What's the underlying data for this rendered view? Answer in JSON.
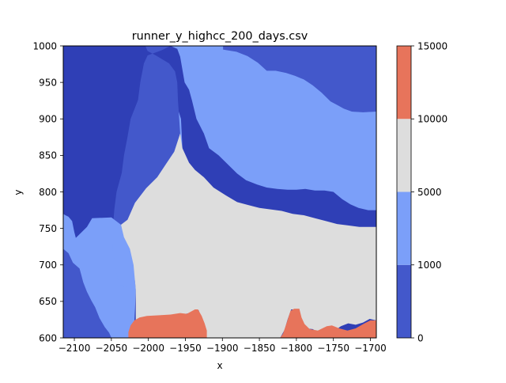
{
  "chart_data": {
    "type": "contourf",
    "title": "runner_y_highcc_200_days.csv",
    "xlabel": "x",
    "ylabel": "y",
    "xlim": [
      -2115,
      -1692
    ],
    "ylim": [
      600,
      1000
    ],
    "xticks": [
      -2100,
      -2050,
      -2000,
      -1950,
      -1900,
      -1850,
      -1800,
      -1750,
      -1700
    ],
    "xtick_labels": [
      "−2100",
      "−2050",
      "−2000",
      "−1950",
      "−1900",
      "−1850",
      "−1800",
      "−1750",
      "−1700"
    ],
    "yticks": [
      600,
      650,
      700,
      750,
      800,
      850,
      900,
      950,
      1000
    ],
    "ytick_labels": [
      "600",
      "650",
      "700",
      "750",
      "800",
      "850",
      "900",
      "950",
      "1000"
    ],
    "colorbar": {
      "levels": [
        0,
        1000,
        5000,
        10000,
        15000
      ],
      "level_labels": [
        "0",
        "1000",
        "5000",
        "10000",
        "15000"
      ],
      "colors": [
        "#4358cb",
        "#7b9ff9",
        "#dddddd",
        "#e7745b"
      ]
    },
    "regions": [
      {
        "level_index": 0,
        "points": [
          [
            -2115,
            600
          ],
          [
            -2115,
            722
          ],
          [
            -2108,
            716
          ],
          [
            -2102,
            703
          ],
          [
            -2093,
            695
          ],
          [
            -2088,
            676
          ],
          [
            -2083,
            663
          ],
          [
            -2077,
            651
          ],
          [
            -2072,
            642
          ],
          [
            -2066,
            627
          ],
          [
            -2059,
            615
          ],
          [
            -2053,
            607
          ],
          [
            -2050,
            600
          ]
        ]
      },
      {
        "level_index": 0,
        "points": [
          [
            -2004,
            1000
          ],
          [
            -2001,
            993
          ],
          [
            -1990,
            987
          ],
          [
            -1972,
            976
          ],
          [
            -1964,
            965
          ],
          [
            -1961,
            950
          ],
          [
            -1960,
            925
          ],
          [
            -1959,
            910
          ],
          [
            -1956,
            900
          ],
          [
            -1954,
            860
          ],
          [
            -1956,
            850
          ],
          [
            -1960,
            825
          ],
          [
            -1971,
            800
          ],
          [
            -1978,
            776
          ],
          [
            -1985,
            751
          ],
          [
            -1992,
            730
          ],
          [
            -2001,
            713
          ],
          [
            -2007,
            698
          ],
          [
            -2015,
            683
          ],
          [
            -2022,
            674
          ],
          [
            -2031,
            670
          ],
          [
            -2039,
            673
          ],
          [
            -2043,
            687
          ],
          [
            -2047,
            712
          ],
          [
            -2049,
            730
          ],
          [
            -2048,
            750
          ],
          [
            -2046,
            776
          ],
          [
            -2043,
            800
          ],
          [
            -2036,
            826
          ],
          [
            -2033,
            850
          ],
          [
            -2028,
            876
          ],
          [
            -2024,
            900
          ],
          [
            -2014,
            926
          ],
          [
            -2011,
            950
          ],
          [
            -2006,
            976
          ],
          [
            -2001,
            987
          ],
          [
            -1982,
            994
          ],
          [
            -1970,
            1000
          ]
        ]
      },
      {
        "level_index": 0,
        "points": [
          [
            -1899,
            1000
          ],
          [
            -1899,
            995
          ],
          [
            -1881,
            992
          ],
          [
            -1866,
            986
          ],
          [
            -1852,
            977
          ],
          [
            -1840,
            966
          ],
          [
            -1828,
            966
          ],
          [
            -1814,
            963
          ],
          [
            -1802,
            959
          ],
          [
            -1790,
            954
          ],
          [
            -1778,
            946
          ],
          [
            -1766,
            936
          ],
          [
            -1754,
            924
          ],
          [
            -1743,
            918
          ],
          [
            -1736,
            914
          ],
          [
            -1725,
            910
          ],
          [
            -1710,
            909
          ],
          [
            -1692,
            910
          ],
          [
            -1692,
            1000
          ]
        ]
      },
      {
        "level_index": 1,
        "points": [
          [
            -2115,
            1000
          ],
          [
            -2115,
            722
          ],
          [
            -2108,
            716
          ],
          [
            -2102,
            703
          ],
          [
            -2093,
            695
          ],
          [
            -2088,
            676
          ],
          [
            -2083,
            663
          ],
          [
            -2077,
            651
          ],
          [
            -2072,
            642
          ],
          [
            -2066,
            627
          ],
          [
            -2059,
            615
          ],
          [
            -2053,
            607
          ],
          [
            -2050,
            600
          ],
          [
            -2020,
            600
          ],
          [
            -2018,
            640
          ],
          [
            -2017,
            666
          ],
          [
            -2020,
            700
          ],
          [
            -2025,
            722
          ],
          [
            -2033,
            738
          ],
          [
            -2037,
            755
          ],
          [
            -2050,
            765
          ],
          [
            -2076,
            764
          ],
          [
            -2083,
            752
          ],
          [
            -2092,
            743
          ],
          [
            -2098,
            737
          ],
          [
            -2100,
            745
          ],
          [
            -2103,
            760
          ],
          [
            -2108,
            766
          ],
          [
            -2112,
            768
          ],
          [
            -2115,
            770
          ],
          [
            -2115,
            1000
          ]
        ]
      },
      {
        "level_index": 1,
        "points": [
          [
            -1960,
            925
          ],
          [
            -1959,
            910
          ],
          [
            -1956,
            900
          ],
          [
            -1954,
            860
          ],
          [
            -1956,
            850
          ],
          [
            -1960,
            825
          ],
          [
            -1971,
            800
          ],
          [
            -1978,
            776
          ],
          [
            -1985,
            751
          ],
          [
            -1992,
            730
          ],
          [
            -2001,
            713
          ],
          [
            -2007,
            698
          ],
          [
            -2015,
            683
          ],
          [
            -2022,
            674
          ],
          [
            -2031,
            670
          ],
          [
            -2039,
            673
          ],
          [
            -2043,
            687
          ],
          [
            -2047,
            712
          ],
          [
            -2049,
            730
          ],
          [
            -2037,
            748
          ],
          [
            -2028,
            762
          ],
          [
            -2018,
            785
          ],
          [
            -2003,
            805
          ],
          [
            -1988,
            820
          ],
          [
            -1975,
            840
          ],
          [
            -1965,
            855
          ],
          [
            -1957,
            880
          ],
          [
            -1960,
            925
          ]
        ]
      },
      {
        "level_index": 1,
        "points": [
          [
            -1970,
            1000
          ],
          [
            -1961,
            996
          ],
          [
            -1957,
            985
          ],
          [
            -1951,
            950
          ],
          [
            -1945,
            940
          ],
          [
            -1941,
            925
          ],
          [
            -1935,
            900
          ],
          [
            -1925,
            880
          ],
          [
            -1918,
            860
          ],
          [
            -1905,
            850
          ],
          [
            -1893,
            838
          ],
          [
            -1880,
            825
          ],
          [
            -1868,
            816
          ],
          [
            -1853,
            810
          ],
          [
            -1840,
            806
          ],
          [
            -1826,
            804
          ],
          [
            -1812,
            803
          ],
          [
            -1800,
            803
          ],
          [
            -1788,
            804
          ],
          [
            -1775,
            802
          ],
          [
            -1762,
            802
          ],
          [
            -1750,
            800
          ],
          [
            -1738,
            790
          ],
          [
            -1727,
            783
          ],
          [
            -1716,
            778
          ],
          [
            -1703,
            775
          ],
          [
            -1692,
            775
          ],
          [
            -1692,
            910
          ],
          [
            -1710,
            909
          ],
          [
            -1725,
            910
          ],
          [
            -1736,
            914
          ],
          [
            -1743,
            918
          ],
          [
            -1754,
            924
          ],
          [
            -1766,
            936
          ],
          [
            -1778,
            946
          ],
          [
            -1790,
            954
          ],
          [
            -1802,
            959
          ],
          [
            -1814,
            963
          ],
          [
            -1828,
            966
          ],
          [
            -1840,
            966
          ],
          [
            -1852,
            977
          ],
          [
            -1866,
            986
          ],
          [
            -1881,
            992
          ],
          [
            -1899,
            995
          ],
          [
            -1899,
            1000
          ]
        ]
      },
      {
        "level_index": 2,
        "points": [
          [
            -2017,
            666
          ],
          [
            -2020,
            700
          ],
          [
            -2025,
            722
          ],
          [
            -2033,
            738
          ],
          [
            -2037,
            755
          ],
          [
            -2028,
            762
          ],
          [
            -2018,
            785
          ],
          [
            -2003,
            805
          ],
          [
            -1988,
            820
          ],
          [
            -1975,
            840
          ],
          [
            -1965,
            855
          ],
          [
            -1957,
            880
          ],
          [
            -1954,
            860
          ],
          [
            -1945,
            840
          ],
          [
            -1937,
            830
          ],
          [
            -1925,
            820
          ],
          [
            -1912,
            806
          ],
          [
            -1895,
            795
          ],
          [
            -1880,
            786
          ],
          [
            -1865,
            782
          ],
          [
            -1850,
            778
          ],
          [
            -1835,
            776
          ],
          [
            -1820,
            774
          ],
          [
            -1805,
            770
          ],
          [
            -1790,
            768
          ],
          [
            -1775,
            764
          ],
          [
            -1760,
            760
          ],
          [
            -1745,
            756
          ],
          [
            -1730,
            754
          ],
          [
            -1715,
            752
          ],
          [
            -1703,
            752
          ],
          [
            -1692,
            752
          ],
          [
            -1692,
            624
          ],
          [
            -1701,
            626
          ],
          [
            -1710,
            621
          ],
          [
            -1720,
            618
          ],
          [
            -1730,
            620
          ],
          [
            -1740,
            616
          ],
          [
            -1748,
            610
          ],
          [
            -1755,
            605
          ],
          [
            -1768,
            606
          ],
          [
            -1778,
            612
          ],
          [
            -1789,
            613
          ],
          [
            -1794,
            622
          ],
          [
            -1800,
            639
          ],
          [
            -1807,
            639
          ],
          [
            -1812,
            625
          ],
          [
            -1816,
            611
          ],
          [
            -1822,
            600
          ],
          [
            -1922,
            600
          ],
          [
            -1925,
            612
          ],
          [
            -1932,
            638
          ],
          [
            -1944,
            634
          ],
          [
            -1960,
            631
          ],
          [
            -1980,
            628
          ],
          [
            -2000,
            625
          ],
          [
            -2017,
            616
          ],
          [
            -2017,
            666
          ]
        ]
      },
      {
        "level_index": 3,
        "points": [
          [
            -2027,
            600
          ],
          [
            -2027,
            608
          ],
          [
            -2024,
            617
          ],
          [
            -2019,
            624
          ],
          [
            -2012,
            628
          ],
          [
            -2002,
            630
          ],
          [
            -1985,
            631
          ],
          [
            -1970,
            632
          ],
          [
            -1957,
            634
          ],
          [
            -1948,
            633
          ],
          [
            -1937,
            639
          ],
          [
            -1933,
            639
          ],
          [
            -1928,
            630
          ],
          [
            -1924,
            620
          ],
          [
            -1921,
            610
          ],
          [
            -1921,
            600
          ]
        ]
      },
      {
        "level_index": 3,
        "points": [
          [
            -1822,
            600
          ],
          [
            -1818,
            606
          ],
          [
            -1814,
            618
          ],
          [
            -1808,
            637
          ],
          [
            -1803,
            640
          ],
          [
            -1796,
            640
          ],
          [
            -1793,
            628
          ],
          [
            -1789,
            619
          ],
          [
            -1782,
            612
          ],
          [
            -1771,
            610
          ],
          [
            -1759,
            616
          ],
          [
            -1752,
            617
          ],
          [
            -1742,
            613
          ],
          [
            -1731,
            610
          ],
          [
            -1720,
            613
          ],
          [
            -1708,
            620
          ],
          [
            -1700,
            624
          ],
          [
            -1692,
            624
          ],
          [
            -1692,
            600
          ]
        ]
      }
    ]
  }
}
